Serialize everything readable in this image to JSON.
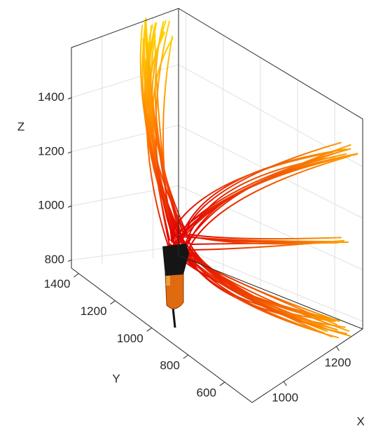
{
  "chart_data": {
    "type": "streamline",
    "xlabel": "X",
    "ylabel": "Y",
    "zlabel": "Z",
    "xlim": [
      880,
      1300
    ],
    "xticks": [
      1000,
      1200
    ],
    "ylim": [
      450,
      1440
    ],
    "yticks": [
      600,
      800,
      1000,
      1200,
      1400
    ],
    "zlim": [
      770,
      1585
    ],
    "zticks": [
      800,
      1000,
      1200,
      1400
    ],
    "grid": true
  }
}
